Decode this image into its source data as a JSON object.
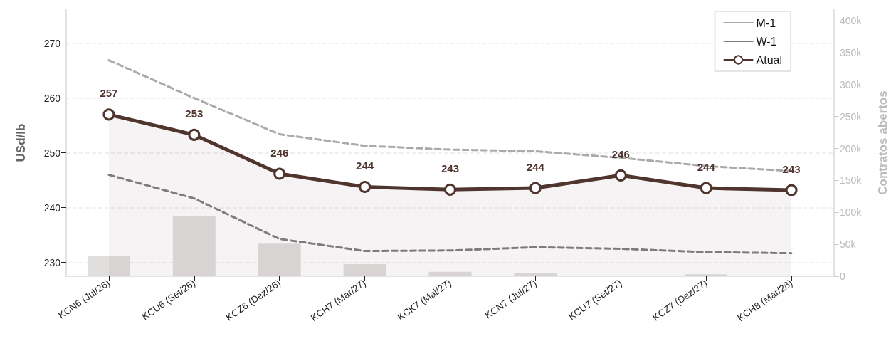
{
  "chart_data": {
    "type": "line",
    "ylabel": "USd/lb",
    "y2label": "Contratos abertos",
    "categories": [
      "KCN6 (Jul/26)",
      "KCU6 (Set/26)",
      "KCZ6 (Dez/26)",
      "KCH7 (Mar/27)",
      "KCK7 (Mai/27)",
      "KCN7 (Jul/27)",
      "KCU7 (Set/27)",
      "KCZ7 (Dez/27)",
      "KCH8 (Mar/28)"
    ],
    "series": [
      {
        "type": "bar",
        "axis": "y2",
        "color": "#e0dfdd",
        "values": [
          32000,
          94000,
          51000,
          19000,
          7000,
          5000,
          null,
          3000,
          null
        ]
      },
      {
        "name": "M-1",
        "color": "#aaaaaa",
        "line_style": "dashed",
        "marker": "none",
        "values": [
          266.9,
          260.0,
          253.4,
          251.3,
          250.6,
          250.3,
          249.1,
          247.6,
          246.7
        ]
      },
      {
        "name": "W-1",
        "color": "#808080",
        "line_style": "dashed",
        "marker": "none",
        "values": [
          246.0,
          241.7,
          234.3,
          232.1,
          232.2,
          232.8,
          232.5,
          231.9,
          231.7
        ]
      },
      {
        "name": "Atual",
        "type": "area",
        "color": "#50352f",
        "line_style": "solid",
        "marker": "circle",
        "values": [
          257.0,
          253.3,
          246.2,
          243.8,
          243.3,
          243.6,
          245.9,
          243.6,
          243.2
        ],
        "value_labels": [
          "257",
          "253",
          "246",
          "244",
          "243",
          "244",
          "246",
          "244",
          "243"
        ]
      }
    ],
    "ylim": [
      227.5,
      276.2
    ],
    "yticks": [
      230,
      240,
      250,
      260,
      270
    ],
    "y2lim": [
      0,
      418000
    ],
    "y2ticks": [
      {
        "value": 0,
        "label": "0"
      },
      {
        "value": 50000,
        "label": "50k"
      },
      {
        "value": 100000,
        "label": "100k"
      },
      {
        "value": 150000,
        "label": "150k"
      },
      {
        "value": 200000,
        "label": "200k"
      },
      {
        "value": 250000,
        "label": "250k"
      },
      {
        "value": 300000,
        "label": "300k"
      },
      {
        "value": 350000,
        "label": "350k"
      },
      {
        "value": 400000,
        "label": "400k"
      }
    ],
    "grid": "y",
    "legend": "top right"
  }
}
